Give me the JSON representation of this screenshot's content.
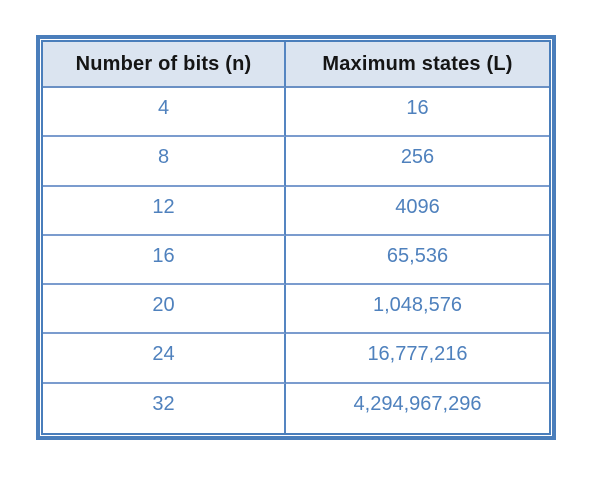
{
  "chart_data": {
    "type": "table",
    "columns": [
      "Number of bits (n)",
      "Maximum states (L)"
    ],
    "rows": [
      [
        "4",
        "16"
      ],
      [
        "8",
        "256"
      ],
      [
        "12",
        "4096"
      ],
      [
        "16",
        "65,536"
      ],
      [
        "20",
        "1,048,576"
      ],
      [
        "24",
        "16,777,216"
      ],
      [
        "32",
        "4,294,967,296"
      ]
    ]
  },
  "colors": {
    "outer_border": "#4a7ebb",
    "column_divider": "#5585c1",
    "row_divider": "#7b9cce",
    "header_fill": "#dbe4f0",
    "header_text": "#151515",
    "value_text": "#4f81bd",
    "background": "#ffffff"
  }
}
